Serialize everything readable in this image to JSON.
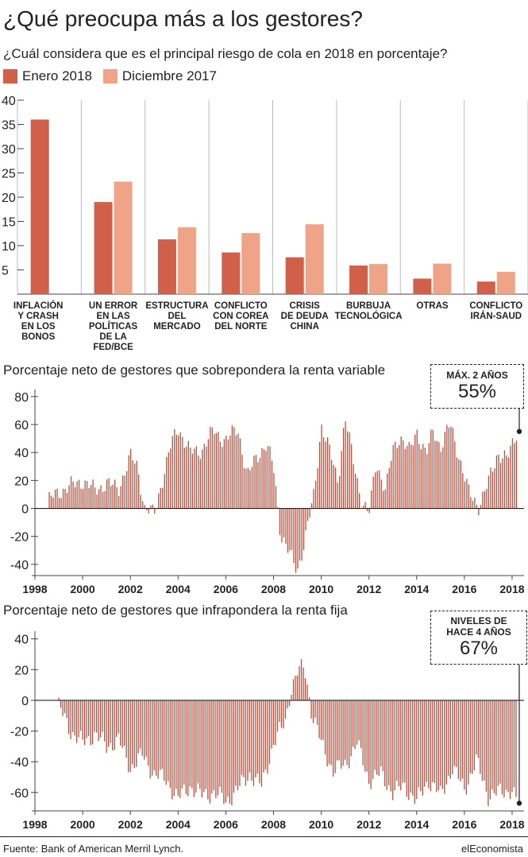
{
  "header": {
    "title": "¿Qué preocupa más a los gestores?",
    "subtitle": "¿Cuál considera que es el principal riesgo de cola en 2018 en porcentaje?"
  },
  "colors": {
    "dark": "#d1604a",
    "light": "#efa488",
    "line": "#b5513f",
    "grid": "#bbbbbb"
  },
  "chart_data": [
    {
      "type": "bar",
      "categories": [
        [
          "INFLACIÓN",
          "Y CRASH",
          "EN LOS",
          "BONOS"
        ],
        [
          "UN ERROR",
          "EN LAS",
          "POLÍTICAS",
          "DE LA",
          "FED/BCE"
        ],
        [
          "ESTRUCTURA",
          "DEL",
          "MERCADO"
        ],
        [
          "CONFLICTO",
          "CON COREA",
          "DEL NORTE"
        ],
        [
          "CRISIS",
          "DE DEUDA",
          "CHINA"
        ],
        [
          "BURBUJA",
          "TECNOLÓGICA"
        ],
        [
          "OTRAS"
        ],
        [
          "CONFLICTO",
          "IRÁN-SAUD"
        ]
      ],
      "series": [
        {
          "name": "Enero 2018",
          "values": [
            36,
            19,
            11.3,
            8.6,
            7.6,
            5.9,
            3.2,
            2.6
          ]
        },
        {
          "name": "Diciembre 2017",
          "values": [
            0,
            23.2,
            13.8,
            12.6,
            14.4,
            6.2,
            6.3,
            4.6
          ]
        }
      ],
      "ylim": [
        0,
        40
      ],
      "yticks": [
        5,
        10,
        15,
        20,
        25,
        30,
        35,
        40
      ]
    },
    {
      "type": "bar",
      "title": "Porcentaje neto de gestores que sobrepondera la renta variable",
      "xticks": [
        1998,
        2000,
        2002,
        2004,
        2006,
        2008,
        2010,
        2012,
        2014,
        2016,
        2018
      ],
      "yticks": [
        -40,
        -20,
        0,
        20,
        40,
        60,
        80
      ],
      "ylim": [
        -48,
        85
      ],
      "xlim": [
        1998,
        2018.5
      ],
      "anchors": [
        [
          1998.6,
          6
        ],
        [
          1999.0,
          12
        ],
        [
          1999.5,
          16
        ],
        [
          2000.0,
          20
        ],
        [
          2000.5,
          13
        ],
        [
          2001.0,
          18
        ],
        [
          2001.5,
          14
        ],
        [
          2002.0,
          37
        ],
        [
          2002.3,
          30
        ],
        [
          2002.6,
          0
        ],
        [
          2003.0,
          -4
        ],
        [
          2003.3,
          18
        ],
        [
          2003.7,
          45
        ],
        [
          2004.0,
          58
        ],
        [
          2004.5,
          40
        ],
        [
          2005.0,
          42
        ],
        [
          2005.5,
          56
        ],
        [
          2006.0,
          48
        ],
        [
          2006.5,
          58
        ],
        [
          2006.9,
          22
        ],
        [
          2007.3,
          38
        ],
        [
          2007.7,
          45
        ],
        [
          2008.0,
          30
        ],
        [
          2008.3,
          -18
        ],
        [
          2008.7,
          -34
        ],
        [
          2009.0,
          -44
        ],
        [
          2009.3,
          -24
        ],
        [
          2009.7,
          10
        ],
        [
          2010.0,
          60
        ],
        [
          2010.4,
          38
        ],
        [
          2010.7,
          20
        ],
        [
          2011.0,
          65
        ],
        [
          2011.3,
          38
        ],
        [
          2011.7,
          5
        ],
        [
          2012.0,
          -5
        ],
        [
          2012.3,
          34
        ],
        [
          2012.7,
          12
        ],
        [
          2013.0,
          42
        ],
        [
          2013.3,
          52
        ],
        [
          2013.7,
          40
        ],
        [
          2014.0,
          56
        ],
        [
          2014.4,
          38
        ],
        [
          2014.7,
          56
        ],
        [
          2015.0,
          44
        ],
        [
          2015.4,
          60
        ],
        [
          2015.8,
          36
        ],
        [
          2016.2,
          10
        ],
        [
          2016.6,
          2
        ],
        [
          2017.0,
          18
        ],
        [
          2017.4,
          40
        ],
        [
          2017.8,
          35
        ],
        [
          2018.2,
          55
        ]
      ],
      "callout": {
        "label": "MÁX. 2 AÑOS",
        "value": "55%",
        "marker": 55
      }
    },
    {
      "type": "bar",
      "title": "Porcentaje neto de gestores que infrapondera la renta fija",
      "xticks": [
        1998,
        2000,
        2002,
        2004,
        2006,
        2008,
        2010,
        2012,
        2014,
        2016,
        2018
      ],
      "yticks": [
        -60,
        -40,
        -20,
        0,
        20,
        40
      ],
      "ylim": [
        -72,
        45
      ],
      "xlim": [
        1998,
        2018.5
      ],
      "anchors": [
        [
          1999.0,
          -4
        ],
        [
          1999.5,
          -20
        ],
        [
          2000.0,
          -28
        ],
        [
          2000.5,
          -22
        ],
        [
          2001.0,
          -30
        ],
        [
          2001.5,
          -26
        ],
        [
          2002.0,
          -44
        ],
        [
          2002.5,
          -36
        ],
        [
          2003.0,
          -48
        ],
        [
          2003.5,
          -52
        ],
        [
          2004.0,
          -64
        ],
        [
          2004.5,
          -56
        ],
        [
          2005.0,
          -62
        ],
        [
          2005.5,
          -60
        ],
        [
          2006.0,
          -66
        ],
        [
          2006.5,
          -58
        ],
        [
          2007.0,
          -48
        ],
        [
          2007.5,
          -56
        ],
        [
          2008.0,
          -28
        ],
        [
          2008.5,
          -14
        ],
        [
          2008.7,
          6
        ],
        [
          2009.0,
          18
        ],
        [
          2009.3,
          22
        ],
        [
          2009.6,
          -8
        ],
        [
          2010.0,
          -28
        ],
        [
          2010.5,
          -46
        ],
        [
          2011.0,
          -42
        ],
        [
          2011.5,
          -28
        ],
        [
          2012.0,
          -52
        ],
        [
          2012.5,
          -48
        ],
        [
          2013.0,
          -60
        ],
        [
          2013.5,
          -56
        ],
        [
          2014.0,
          -66
        ],
        [
          2014.5,
          -52
        ],
        [
          2015.0,
          -62
        ],
        [
          2015.5,
          -44
        ],
        [
          2016.0,
          -58
        ],
        [
          2016.5,
          -40
        ],
        [
          2017.0,
          -62
        ],
        [
          2017.5,
          -60
        ],
        [
          2018.0,
          -58
        ],
        [
          2018.2,
          -67
        ]
      ],
      "callout": {
        "label": "NIVELES DE HACE 4 AÑOS",
        "label_lines": [
          "NIVELES DE",
          "HACE 4 AÑOS"
        ],
        "value": "67%",
        "marker": -67
      }
    }
  ],
  "footer": {
    "source": "Fuente: Bank of American Merril Lynch.",
    "brand": "elEconomista"
  }
}
